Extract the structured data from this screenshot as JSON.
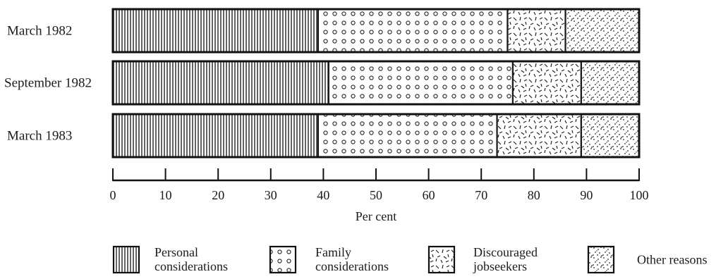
{
  "chart_data": {
    "type": "bar",
    "orientation": "horizontal",
    "stacked": true,
    "categories": [
      "March 1982",
      "September 1982",
      "March 1983"
    ],
    "series": [
      {
        "name": "Personal considerations",
        "values": [
          39,
          41,
          39
        ]
      },
      {
        "name": "Family considerations",
        "values": [
          36,
          35,
          34
        ]
      },
      {
        "name": "Discouraged jobseekers",
        "values": [
          11,
          13,
          16
        ]
      },
      {
        "name": "Other reasons",
        "values": [
          14,
          11,
          11
        ]
      }
    ],
    "xlabel": "Per cent",
    "ylabel": "",
    "xlim": [
      0,
      100
    ],
    "xticks": [
      0,
      10,
      20,
      30,
      40,
      50,
      60,
      70,
      80,
      90,
      100
    ],
    "legend": {
      "position": "bottom",
      "entries": [
        {
          "lines": [
            "Personal",
            "considerations"
          ],
          "pattern": "vertical-lines-icon"
        },
        {
          "lines": [
            "Family",
            "considerations"
          ],
          "pattern": "circles-icon"
        },
        {
          "lines": [
            "Discouraged",
            "jobseekers"
          ],
          "pattern": "dashes-icon"
        },
        {
          "lines": [
            "Other reasons"
          ],
          "pattern": "dots-icon"
        }
      ]
    },
    "grid": false
  }
}
